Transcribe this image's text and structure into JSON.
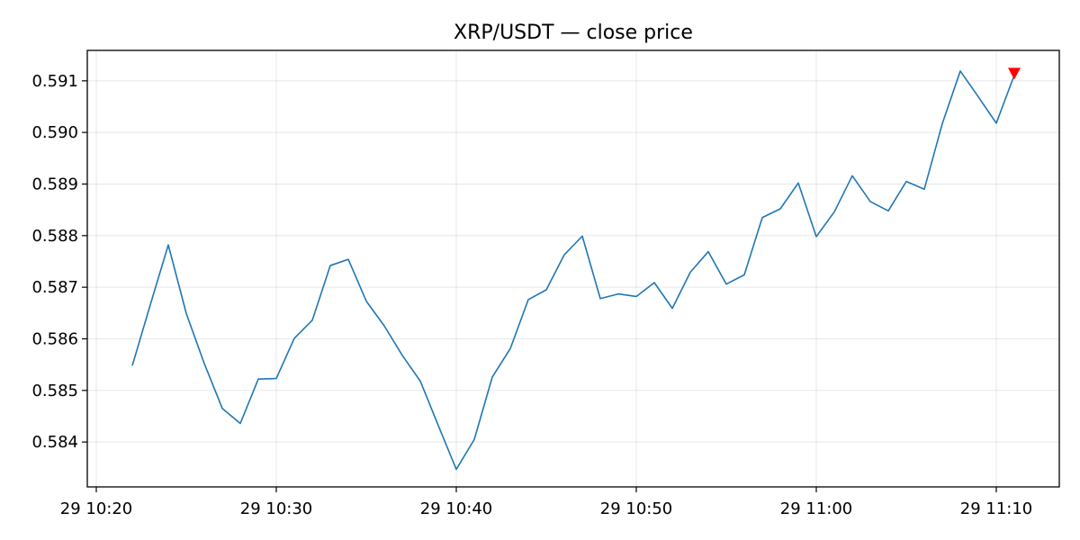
{
  "chart_data": {
    "type": "line",
    "title": "XRP/USDT — close price",
    "xlabel": "",
    "ylabel": "",
    "x_start": "29 10:22",
    "x_step_minutes": 1,
    "x_ticks": [
      "29 10:20",
      "29 10:30",
      "29 10:40",
      "29 10:50",
      "29 11:00",
      "29 11:10"
    ],
    "x_tick_minutes": [
      0,
      10,
      20,
      30,
      40,
      50
    ],
    "xlim_minutes": [
      -0.5,
      53.5
    ],
    "y_ticks": [
      "0.584",
      "0.585",
      "0.586",
      "0.587",
      "0.588",
      "0.589",
      "0.590",
      "0.591"
    ],
    "ylim": [
      0.58313,
      0.59159
    ],
    "grid": true,
    "series": [
      {
        "color": "#1f77b4",
        "values": [
          0.58548,
          0.58666,
          0.58782,
          0.58649,
          0.58552,
          0.58465,
          0.58436,
          0.58522,
          0.58523,
          0.58601,
          0.58636,
          0.58742,
          0.58754,
          0.58673,
          0.58625,
          0.58568,
          0.58518,
          0.58432,
          0.58347,
          0.58405,
          0.58526,
          0.58581,
          0.58676,
          0.58695,
          0.58763,
          0.58799,
          0.58678,
          0.58687,
          0.58682,
          0.58709,
          0.58659,
          0.58729,
          0.58769,
          0.58706,
          0.58724,
          0.58835,
          0.58852,
          0.58902,
          0.58798,
          0.58846,
          0.58916,
          0.58866,
          0.58848,
          0.58905,
          0.5889,
          0.59017,
          0.59119,
          0.59069,
          0.59018,
          0.59111
        ]
      }
    ],
    "markers": [
      {
        "shape": "triangle-down",
        "color": "#ff0000",
        "index": 49,
        "value": 0.59113
      }
    ]
  }
}
